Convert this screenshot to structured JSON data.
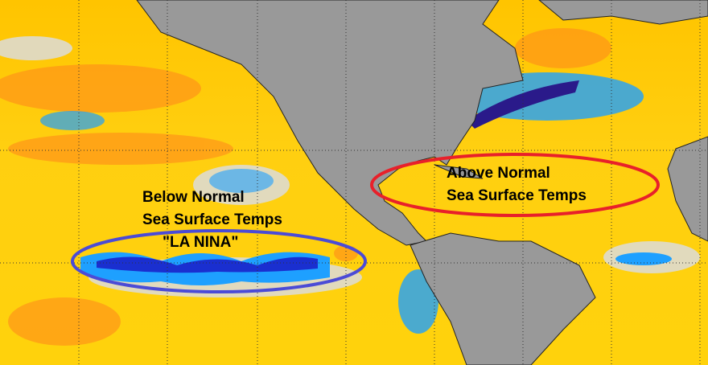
{
  "map": {
    "type": "sea-surface-temperature-anomaly",
    "colors": {
      "land": "#999999",
      "warm": "#ffd700",
      "hot": "#ff7a1a",
      "cool": "#1ea0ff",
      "cold": "#1a2fd0",
      "neutral": "#d9d9d9"
    },
    "annotations": {
      "below": {
        "line1": "Below Normal",
        "line2": "Sea Surface Temps",
        "line3": "\"LA NINA\"",
        "ellipse_color": "#4b4bd6"
      },
      "above": {
        "line1": "Above Normal",
        "line2": "Sea Surface Temps",
        "ellipse_color": "#e8202a"
      }
    }
  }
}
